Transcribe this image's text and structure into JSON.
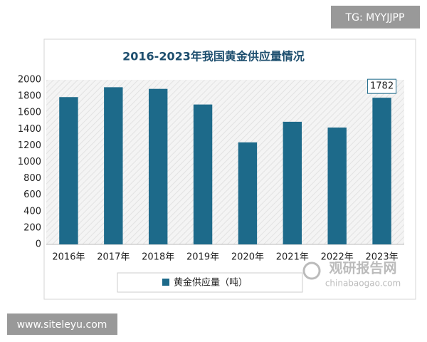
{
  "chart_data": {
    "type": "bar",
    "title": "2016-2023年我国黄金供应量情况",
    "categories": [
      "2016年",
      "2017年",
      "2018年",
      "2019年",
      "2020年",
      "2021年",
      "2022年",
      "2023年"
    ],
    "series": [
      {
        "name": "黄金供应量（吨）",
        "color": "#1d6a8a",
        "values": [
          1790,
          1910,
          1890,
          1700,
          1240,
          1490,
          1420,
          1782
        ]
      }
    ],
    "labeled_points": [
      7
    ],
    "ylim": [
      0,
      2000
    ],
    "yticks": [
      0,
      200,
      400,
      600,
      800,
      1000,
      1200,
      1400,
      1600,
      1800,
      2000
    ],
    "grid": false
  },
  "watermarks": {
    "top_right": "TG: MYYJJPP",
    "bottom_left": "www.siteleyu.com",
    "logo": "观研报告网",
    "logo_url": "chinabaogao.com"
  }
}
